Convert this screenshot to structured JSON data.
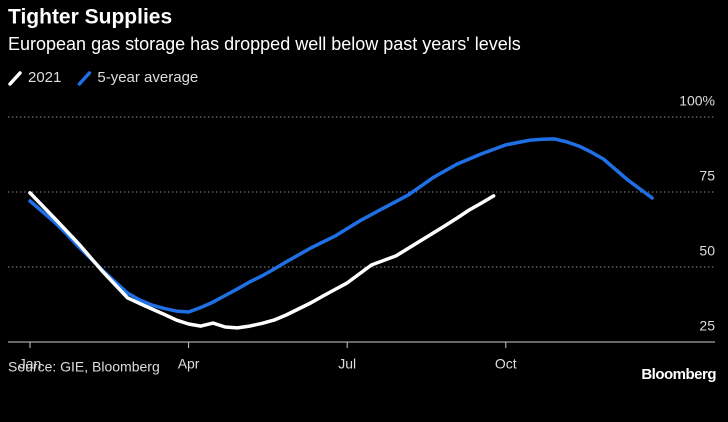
{
  "chart_data": {
    "type": "line",
    "title": "Tighter Supplies",
    "subtitle": "European gas storage has dropped well below past years' levels",
    "source": "Source: GIE, Bloomberg",
    "logo": "Bloomberg",
    "categories": [
      "Jan",
      null,
      null,
      null,
      null,
      null,
      null,
      null,
      null,
      null,
      null,
      null,
      null,
      "Apr",
      null,
      null,
      null,
      null,
      null,
      null,
      null,
      null,
      null,
      null,
      null,
      null,
      "Jul",
      null,
      null,
      null,
      null,
      null,
      null,
      null,
      null,
      null,
      null,
      null,
      null,
      "Oct",
      null,
      null,
      null,
      null,
      null,
      null,
      null,
      null,
      null,
      null,
      null,
      null
    ],
    "series": [
      {
        "name": "2021",
        "color": "#ffffff",
        "values": [
          74.7,
          70.5,
          66.3,
          62,
          57.7,
          53,
          48.3,
          44,
          39.7,
          37.8,
          36,
          34.2,
          32.3,
          31,
          30.3,
          31.3,
          30,
          29.7,
          30.3,
          31.2,
          32.3,
          34,
          36,
          38,
          40.3,
          42.5,
          44.7,
          47.7,
          50.7,
          52.2,
          53.7,
          56.2,
          58.7,
          61.2,
          63.7,
          66.3,
          69,
          71.3,
          73.7,
          null,
          null,
          null,
          null,
          null,
          null,
          null,
          null,
          null,
          null,
          null,
          null,
          null
        ]
      },
      {
        "name": "5-year average",
        "color": "#1f6fe5",
        "values": [
          72,
          68.5,
          65,
          61,
          56.7,
          52.7,
          48.7,
          45,
          41.3,
          39,
          37.3,
          36.2,
          35.3,
          35,
          36.5,
          38.3,
          40.5,
          42.7,
          45,
          47,
          49.3,
          51.7,
          54,
          56.3,
          58.3,
          60.3,
          62.8,
          65.3,
          67.5,
          69.7,
          71.8,
          74,
          76.8,
          79.7,
          82,
          84.3,
          86,
          87.7,
          89.2,
          90.7,
          91.5,
          92.3,
          92.6,
          92.7,
          91.7,
          90.3,
          88.3,
          86,
          82.5,
          79,
          76,
          73
        ]
      }
    ],
    "ylim": [
      25,
      100
    ],
    "yticks": [
      25,
      50,
      75,
      {
        "value": 100,
        "label": "100%"
      }
    ],
    "grid": true
  }
}
